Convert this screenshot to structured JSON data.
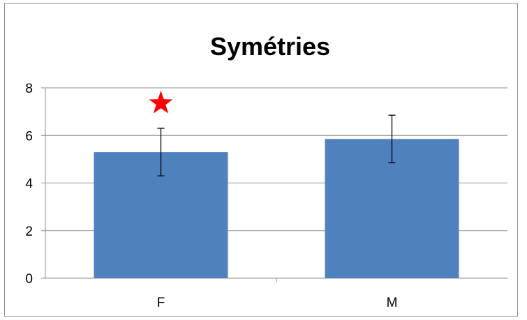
{
  "chart_data": {
    "type": "bar",
    "title": "Symétries",
    "xlabel": "",
    "ylabel": "",
    "categories": [
      "F",
      "M"
    ],
    "values": [
      5.3,
      5.85
    ],
    "error": [
      1.0,
      1.0
    ],
    "ylim": [
      0,
      8
    ],
    "yticks": [
      "0",
      "2",
      "4",
      "6",
      "8"
    ],
    "grid": true,
    "legend": "none",
    "bar_color": "#4f81bd",
    "annotations": [
      {
        "category": "F",
        "symbol": "★",
        "meaning": "significance-marker",
        "color": "#ff0000"
      }
    ]
  }
}
